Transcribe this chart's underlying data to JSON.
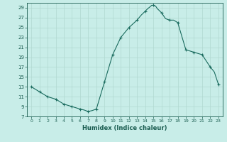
{
  "x": [
    0,
    1,
    2,
    3,
    4,
    5,
    6,
    6.5,
    7,
    7.5,
    8,
    9,
    10,
    11,
    12,
    13,
    13.5,
    14,
    14.3,
    14.6,
    14.8,
    15,
    15.3,
    15.5,
    15.7,
    16,
    16.5,
    17,
    17.5,
    18,
    19,
    20,
    21,
    22,
    22.5,
    23
  ],
  "y": [
    13,
    12,
    11,
    10.5,
    9.5,
    9,
    8.5,
    8.3,
    8,
    8.2,
    8.5,
    14,
    19.5,
    23,
    25,
    26.5,
    27.5,
    28.3,
    28.8,
    29.2,
    29.5,
    29.5,
    29.3,
    28.8,
    28.5,
    28,
    26.8,
    26.5,
    26.5,
    26,
    20.5,
    20,
    19.5,
    17,
    16,
    13.5
  ],
  "x_markers": [
    0,
    1,
    2,
    3,
    4,
    5,
    6,
    7,
    8,
    9,
    10,
    11,
    12,
    13,
    14,
    15,
    16,
    17,
    18,
    19,
    20,
    21,
    22,
    23
  ],
  "y_markers": [
    13,
    12,
    11,
    10.5,
    9.5,
    9,
    8.5,
    8,
    8.5,
    14,
    19.5,
    23,
    25,
    26.5,
    28.3,
    29.5,
    28,
    26.5,
    26,
    20.5,
    20,
    19.5,
    17,
    13.5
  ],
  "line_color": "#1a6b5e",
  "marker_color": "#1a6b5e",
  "bg_color": "#c8ede8",
  "grid_color_major": "#b0d8d0",
  "grid_color_minor": "#c0e5e0",
  "xlabel": "Humidex (Indice chaleur)",
  "xlim": [
    -0.5,
    23.5
  ],
  "ylim": [
    7,
    30
  ],
  "yticks": [
    7,
    9,
    11,
    13,
    15,
    17,
    19,
    21,
    23,
    25,
    27,
    29
  ],
  "xticks": [
    0,
    1,
    2,
    3,
    4,
    5,
    6,
    7,
    8,
    9,
    10,
    11,
    12,
    13,
    14,
    15,
    16,
    17,
    18,
    19,
    20,
    21,
    22,
    23
  ],
  "text_color": "#1a5c50"
}
